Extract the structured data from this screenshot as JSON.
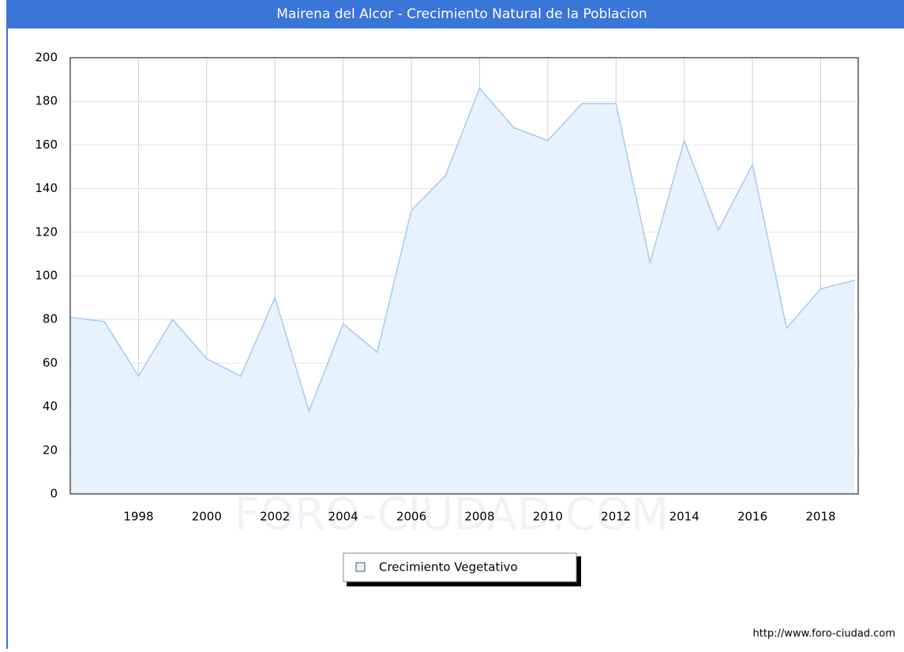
{
  "chart_data": {
    "type": "area",
    "title": "Mairena del Alcor - Crecimiento Natural de la Poblacion",
    "x": [
      1996,
      1997,
      1998,
      1999,
      2000,
      2001,
      2002,
      2003,
      2004,
      2005,
      2006,
      2007,
      2008,
      2009,
      2010,
      2011,
      2012,
      2013,
      2014,
      2015,
      2016,
      2017,
      2018,
      2019
    ],
    "series": [
      {
        "name": "Crecimiento Vegetativo",
        "color": "#a8c8f0",
        "fill": "#e3f1fd",
        "values": [
          81,
          79,
          54,
          80,
          62,
          54,
          90,
          38,
          78,
          65,
          130,
          146,
          186,
          168,
          162,
          179,
          179,
          106,
          162,
          121,
          151,
          76,
          94,
          98
        ]
      }
    ],
    "xlim": [
      1996,
      2019.1
    ],
    "xticks": [
      1998,
      2000,
      2002,
      2004,
      2006,
      2008,
      2010,
      2012,
      2014,
      2016,
      2018
    ],
    "ylim": [
      0,
      200
    ],
    "yticks": [
      0,
      20,
      40,
      60,
      80,
      100,
      120,
      140,
      160,
      180,
      200
    ],
    "grid": true,
    "legend": "bottom",
    "watermark": "FORO-CIUDAD.COM",
    "source": "http://www.foro-ciudad.com"
  }
}
